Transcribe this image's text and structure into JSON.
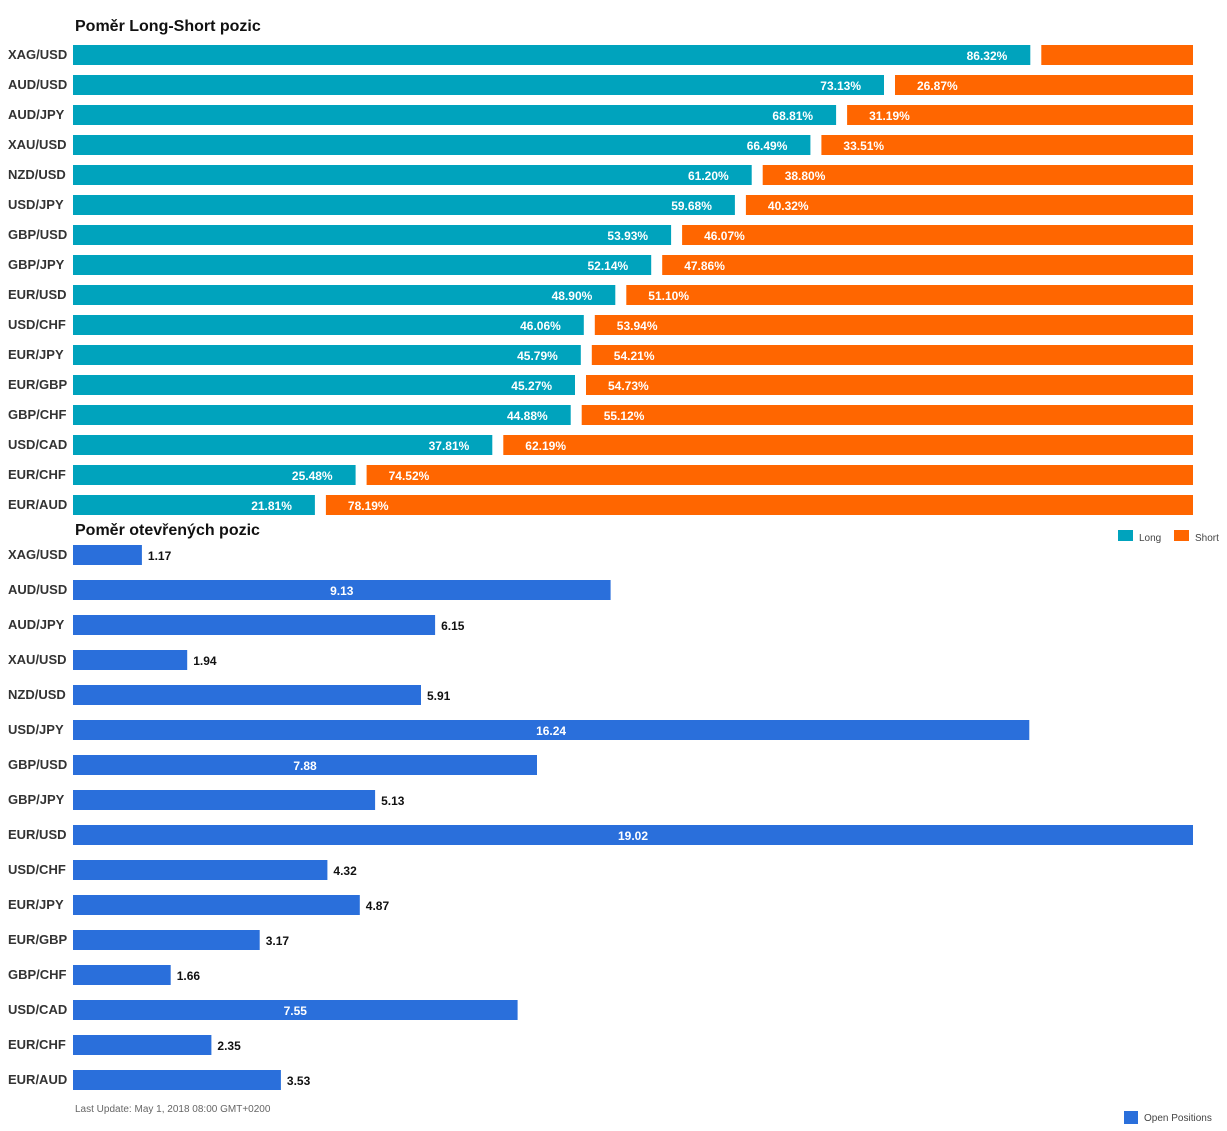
{
  "colors": {
    "long": "#00a3bd",
    "short": "#ff6600",
    "open": "#2a6fdb"
  },
  "chart_data": [
    {
      "type": "bar",
      "orientation": "horizontal",
      "stacked": true,
      "title": "Poměr Long-Short pozic",
      "categories": [
        "XAG/USD",
        "AUD/USD",
        "AUD/JPY",
        "XAU/USD",
        "NZD/USD",
        "USD/JPY",
        "GBP/USD",
        "GBP/JPY",
        "EUR/USD",
        "USD/CHF",
        "EUR/JPY",
        "EUR/GBP",
        "GBP/CHF",
        "USD/CAD",
        "EUR/CHF",
        "EUR/AUD"
      ],
      "series": [
        {
          "name": "Long",
          "values": [
            86.32,
            73.13,
            68.81,
            66.49,
            61.2,
            59.68,
            53.93,
            52.14,
            48.9,
            46.06,
            45.79,
            45.27,
            44.88,
            37.81,
            25.48,
            21.81
          ],
          "labels": [
            "86.32%",
            "73.13%",
            "68.81%",
            "66.49%",
            "61.20%",
            "59.68%",
            "53.93%",
            "52.14%",
            "48.90%",
            "46.06%",
            "45.79%",
            "45.27%",
            "44.88%",
            "37.81%",
            "25.48%",
            "21.81%"
          ]
        },
        {
          "name": "Short",
          "values": [
            13.68,
            26.87,
            31.19,
            33.51,
            38.8,
            40.32,
            46.07,
            47.86,
            51.1,
            53.94,
            54.21,
            54.73,
            55.12,
            62.19,
            74.52,
            78.19
          ],
          "labels": [
            "",
            "26.87%",
            "31.19%",
            "33.51%",
            "38.80%",
            "40.32%",
            "46.07%",
            "47.86%",
            "51.10%",
            "53.94%",
            "54.21%",
            "54.73%",
            "55.12%",
            "62.19%",
            "74.52%",
            "78.19%"
          ]
        }
      ],
      "legend": "top-right",
      "grid": false
    },
    {
      "type": "bar",
      "orientation": "horizontal",
      "title": "Poměr otevřených pozic",
      "categories": [
        "XAG/USD",
        "AUD/USD",
        "AUD/JPY",
        "XAU/USD",
        "NZD/USD",
        "USD/JPY",
        "GBP/USD",
        "GBP/JPY",
        "EUR/USD",
        "USD/CHF",
        "EUR/JPY",
        "EUR/GBP",
        "GBP/CHF",
        "USD/CAD",
        "EUR/CHF",
        "EUR/AUD"
      ],
      "series": [
        {
          "name": "Open Positions",
          "values": [
            1.17,
            9.13,
            6.15,
            1.94,
            5.91,
            16.24,
            7.88,
            5.13,
            19.02,
            4.32,
            4.87,
            3.17,
            1.66,
            7.55,
            2.35,
            3.53
          ],
          "labels": [
            "1.17",
            "9.13",
            "6.15",
            "1.94",
            "5.91",
            "16.24",
            "7.88",
            "5.13",
            "19.02",
            "4.32",
            "4.87",
            "3.17",
            "1.66",
            "7.55",
            "2.35",
            "3.53"
          ]
        }
      ],
      "xlim": [
        0,
        19.02
      ],
      "legend": "bottom-right",
      "grid": false
    }
  ],
  "footer": {
    "last_update": "Last Update: May 1, 2018 08:00 GMT+0200"
  }
}
